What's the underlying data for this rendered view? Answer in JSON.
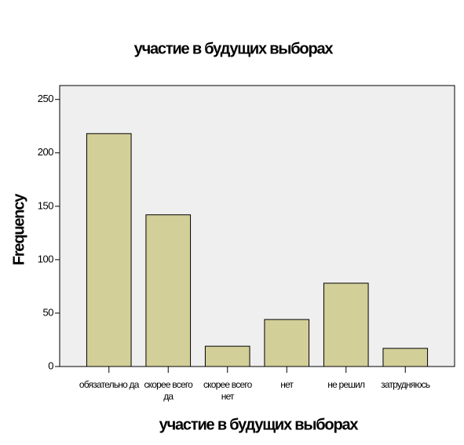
{
  "chart_data": {
    "type": "bar",
    "title": "участие в будущих выборах",
    "x_label": "участие в будущих выборах",
    "y_label": "Frequency",
    "categories": [
      "обязательно да",
      "скорее всего да",
      "скорее всего нет",
      "нет",
      "не решил",
      "затрудняюсь"
    ],
    "values": [
      218,
      142,
      19,
      44,
      78,
      17
    ],
    "color": "#d3cf98",
    "ylim": [
      0,
      263
    ],
    "yticks": [
      0,
      50,
      100,
      150,
      200,
      250
    ]
  }
}
